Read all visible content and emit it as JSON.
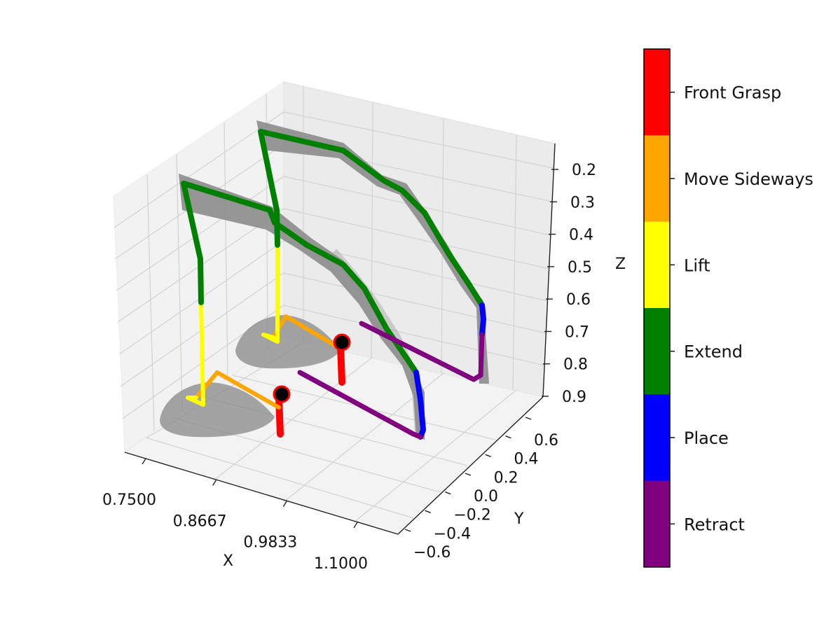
{
  "chart_data": {
    "type": "line3d",
    "axes": {
      "x": {
        "label": "X",
        "ticks": [
          "0.7500",
          "0.8667",
          "0.9833",
          "1.1000"
        ]
      },
      "y": {
        "label": "Y",
        "ticks": [
          "-0.6",
          "-0.4",
          "-0.2",
          "0.0",
          "0.2",
          "0.4",
          "0.6"
        ]
      },
      "z": {
        "label": "Z",
        "ticks": [
          "0.2",
          "0.3",
          "0.4",
          "0.5",
          "0.6",
          "0.7",
          "0.8",
          "0.9"
        ]
      }
    },
    "grid": true,
    "colorbar": {
      "placement": "right",
      "phases": [
        {
          "name": "Front Grasp",
          "color": "#ff0000"
        },
        {
          "name": "Move Sideways",
          "color": "#ffa500"
        },
        {
          "name": "Lift",
          "color": "#ffff00"
        },
        {
          "name": "Extend",
          "color": "#008000"
        },
        {
          "name": "Place",
          "color": "#0000ff"
        },
        {
          "name": "Retract",
          "color": "#800080"
        }
      ]
    },
    "series": [
      {
        "phases": [
          "Front Grasp",
          "Move Sideways",
          "Lift",
          "Extend",
          "Place",
          "Retract"
        ]
      },
      {
        "phases": [
          "Front Grasp",
          "Move Sideways",
          "Lift",
          "Extend",
          "Place",
          "Retract"
        ]
      }
    ]
  }
}
